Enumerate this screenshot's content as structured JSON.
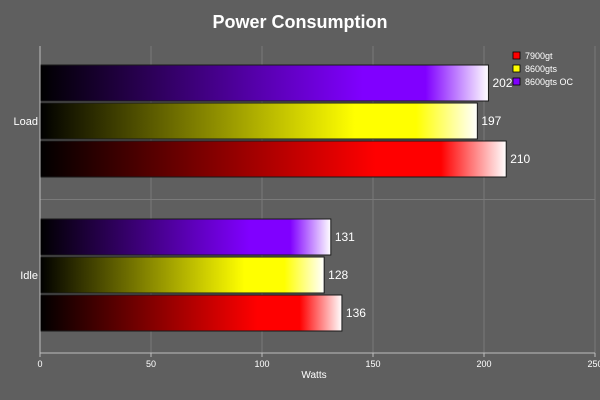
{
  "chart_data": {
    "type": "bar",
    "orientation": "horizontal",
    "title": "Power Consumption",
    "xlabel": "Watts",
    "ylabel": "",
    "categories": [
      "Load",
      "Idle"
    ],
    "series": [
      {
        "name": "7900gt",
        "values": [
          210,
          136
        ],
        "color": "#ff0000"
      },
      {
        "name": "8600gts",
        "values": [
          197,
          128
        ],
        "color": "#ffff00"
      },
      {
        "name": "8600gts OC",
        "values": [
          202,
          131
        ],
        "color": "#8000ff"
      }
    ],
    "xlim": [
      0,
      250
    ],
    "xticks": [
      0,
      50,
      100,
      150,
      200,
      250
    ],
    "grid": true,
    "legend": "top-right",
    "colors": {
      "background": "#5f5f5f",
      "grid": "#7a7a7a",
      "axis": "#bdbdbd",
      "text": "#ffffff"
    }
  }
}
